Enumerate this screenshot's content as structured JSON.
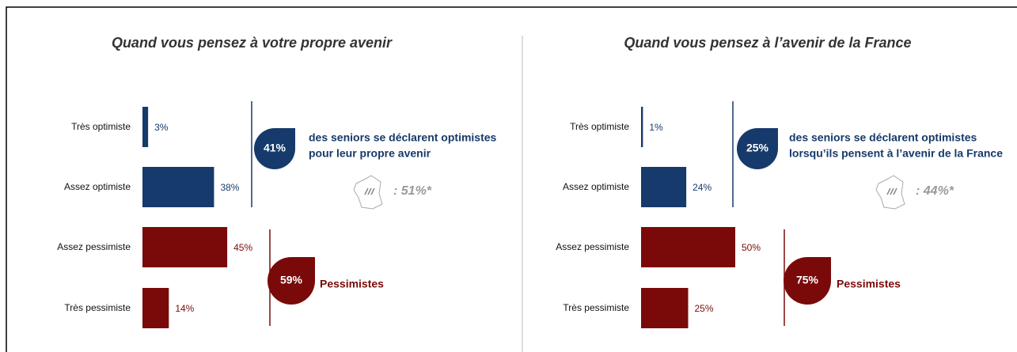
{
  "chart_data": [
    {
      "type": "bar",
      "title": "Quand vous pensez à votre propre avenir",
      "categories": [
        "Très optimiste",
        "Assez optimiste",
        "Assez pessimiste",
        "Très pessimiste"
      ],
      "values": [
        3,
        38,
        45,
        14
      ],
      "value_labels": [
        "3%",
        "38%",
        "45%",
        "14%"
      ],
      "colors": [
        "#163a6b",
        "#163a6b",
        "#7a0a0a",
        "#7a0a0a"
      ],
      "summaries": [
        {
          "value": 41,
          "label": "41%",
          "text": [
            "des seniors se déclarent optimistes",
            "pour leur propre avenir"
          ],
          "color": "#163a6b"
        },
        {
          "value": 59,
          "label": "59%",
          "text": [
            "Pessimistes"
          ],
          "color": "#7a0a0a"
        }
      ],
      "france": {
        "value": 51,
        "label": ": 51%*"
      }
    },
    {
      "type": "bar",
      "title": "Quand vous pensez à l’avenir de la France",
      "categories": [
        "Très optimiste",
        "Assez optimiste",
        "Assez pessimiste",
        "Très pessimiste"
      ],
      "values": [
        1,
        24,
        50,
        25
      ],
      "value_labels": [
        "1%",
        "24%",
        "50%",
        "25%"
      ],
      "colors": [
        "#163a6b",
        "#163a6b",
        "#7a0a0a",
        "#7a0a0a"
      ],
      "summaries": [
        {
          "value": 25,
          "label": "25%",
          "text": [
            "des seniors se déclarent optimistes",
            "lorsqu’ils pensent à l’avenir de la France"
          ],
          "color": "#163a6b"
        },
        {
          "value": 75,
          "label": "75%",
          "text": [
            "Pessimistes"
          ],
          "color": "#7a0a0a"
        }
      ],
      "france": {
        "value": 44,
        "label": ": 44%*"
      }
    }
  ]
}
